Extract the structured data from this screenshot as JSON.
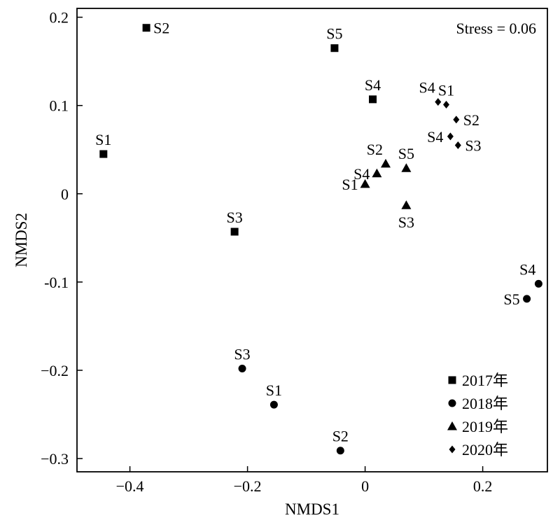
{
  "chart_data": {
    "type": "scatter",
    "xlabel": "NMDS1",
    "ylabel": "NMDS2",
    "xlim": [
      -0.49,
      0.31
    ],
    "ylim": [
      -0.315,
      0.21
    ],
    "x_ticks": [
      {
        "value": -0.4,
        "label": "−0.4"
      },
      {
        "value": -0.2,
        "label": "−0.2"
      },
      {
        "value": 0,
        "label": "0"
      },
      {
        "value": 0.2,
        "label": "0.2"
      }
    ],
    "y_ticks": [
      {
        "value": 0.2,
        "label": "0.2"
      },
      {
        "value": 0.1,
        "label": "0.1"
      },
      {
        "value": 0,
        "label": "0"
      },
      {
        "value": -0.1,
        "label": "-0.1"
      },
      {
        "value": -0.2,
        "label": "−0.2"
      },
      {
        "value": -0.3,
        "label": "−0.3"
      }
    ],
    "annotation": "Stress = 0.06",
    "grid": false,
    "legend_position": "bottom-right",
    "series": [
      {
        "name": "2017年",
        "marker": "square",
        "points": [
          {
            "label": "S1",
            "x": -0.445,
            "y": 0.045,
            "label_pos": "above"
          },
          {
            "label": "S2",
            "x": -0.372,
            "y": 0.188,
            "label_pos": "right"
          },
          {
            "label": "S3",
            "x": -0.222,
            "y": -0.043,
            "label_pos": "above"
          },
          {
            "label": "S4",
            "x": 0.013,
            "y": 0.107,
            "label_pos": "above"
          },
          {
            "label": "S5",
            "x": -0.052,
            "y": 0.165,
            "label_pos": "above"
          }
        ]
      },
      {
        "name": "2018年",
        "marker": "circle",
        "points": [
          {
            "label": "S1",
            "x": -0.155,
            "y": -0.239,
            "label_pos": "above"
          },
          {
            "label": "S2",
            "x": -0.042,
            "y": -0.291,
            "label_pos": "above"
          },
          {
            "label": "S3",
            "x": -0.209,
            "y": -0.198,
            "label_pos": "above"
          },
          {
            "label": "S4",
            "x": 0.295,
            "y": -0.102,
            "label_pos": "above-left"
          },
          {
            "label": "S5",
            "x": 0.275,
            "y": -0.119,
            "label_pos": "left"
          }
        ]
      },
      {
        "name": "2019年",
        "marker": "triangle",
        "points": [
          {
            "label": "S1",
            "x": 0.0,
            "y": 0.011,
            "label_pos": "left"
          },
          {
            "label": "S2",
            "x": 0.035,
            "y": 0.034,
            "label_pos": "above-left"
          },
          {
            "label": "S3",
            "x": 0.07,
            "y": -0.013,
            "label_pos": "below"
          },
          {
            "label": "S4",
            "x": 0.02,
            "y": 0.023,
            "label_pos": "left"
          },
          {
            "label": "S5",
            "x": 0.07,
            "y": 0.029,
            "label_pos": "above"
          }
        ]
      },
      {
        "name": "2020年",
        "marker": "diamond",
        "points": [
          {
            "label": "S1",
            "x": 0.138,
            "y": 0.101,
            "label_pos": "above"
          },
          {
            "label": "S2",
            "x": 0.155,
            "y": 0.084,
            "label_pos": "right"
          },
          {
            "label": "S3",
            "x": 0.158,
            "y": 0.055,
            "label_pos": "right"
          },
          {
            "label": "S4",
            "x": 0.124,
            "y": 0.104,
            "label_pos": "above-left"
          },
          {
            "label": "S4",
            "x": 0.145,
            "y": 0.065,
            "label_pos": "left"
          }
        ]
      }
    ]
  }
}
